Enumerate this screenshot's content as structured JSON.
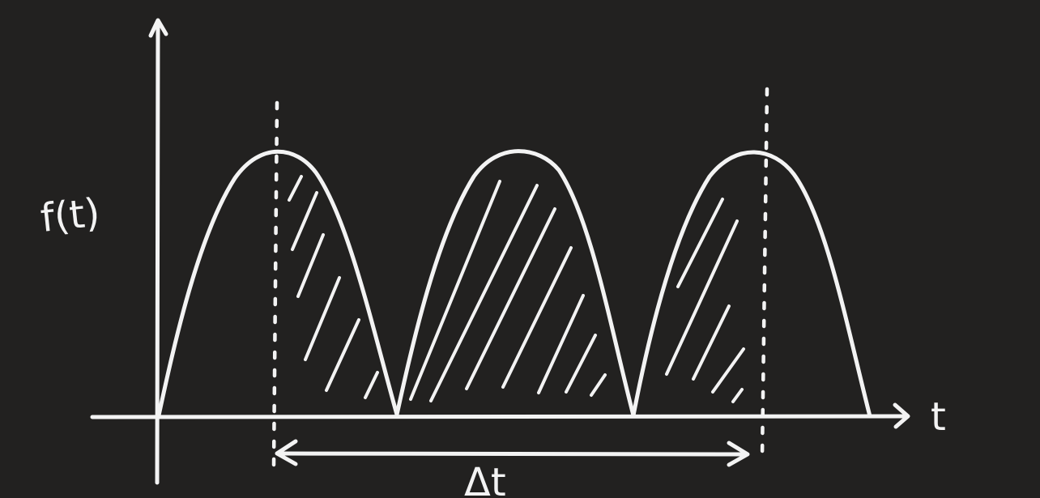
{
  "diagram": {
    "y_label": "f(t)",
    "x_label": "t",
    "interval_label": "Δt",
    "stroke_color": "#f3f3f3",
    "background_color": "#222120"
  }
}
